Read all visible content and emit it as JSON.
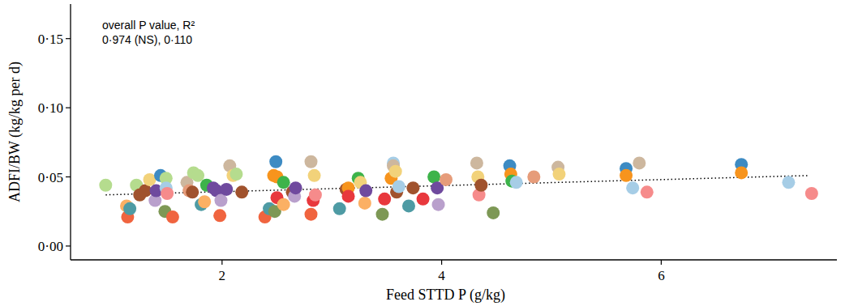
{
  "chart_data": {
    "type": "scatter",
    "x_label": "Feed STTD P (g/kg)",
    "y_label": "ADFI/BW (kg/kg per d)",
    "annotations": [
      "overall P value, R²",
      "0·974 (NS), 0·110"
    ],
    "xlim": [
      0.62,
      7.6
    ],
    "ylim": [
      -0.01,
      0.175
    ],
    "xticks": [
      2,
      4,
      6
    ],
    "yticks": [
      {
        "value": 0,
        "label": "0·00"
      },
      {
        "value": 0.05,
        "label": "0·05"
      },
      {
        "value": 0.1,
        "label": "0·10"
      },
      {
        "value": 0.15,
        "label": "0·15"
      }
    ],
    "grid": false,
    "series": [
      {
        "type": "scatter",
        "marker": "circle",
        "x": [
          0.94,
          1.14,
          1.13,
          1.16,
          1.22,
          1.25,
          1.3,
          1.34,
          1.39,
          1.4,
          1.44,
          1.49,
          1.49,
          1.5,
          1.48,
          1.55,
          1.68,
          1.7,
          1.73,
          1.74,
          1.78,
          1.81,
          1.84,
          1.86,
          1.92,
          1.95,
          1.98,
          1.99,
          2.04,
          2.07,
          2.1,
          2.13,
          2.18,
          2.39,
          2.43,
          2.47,
          2.48,
          2.49,
          2.5,
          2.5,
          2.56,
          2.56,
          2.64,
          2.66,
          2.67,
          2.81,
          2.81,
          2.83,
          2.84,
          2.85,
          3.07,
          3.13,
          3.15,
          3.15,
          3.24,
          3.26,
          3.3,
          3.31,
          3.46,
          3.48,
          3.54,
          3.56,
          3.56,
          3.58,
          3.59,
          3.61,
          3.7,
          3.74,
          3.83,
          3.93,
          3.96,
          3.97,
          4.04,
          4.32,
          4.33,
          4.34,
          4.36,
          4.47,
          4.62,
          4.63,
          4.64,
          4.68,
          4.84,
          5.06,
          5.07,
          5.68,
          5.68,
          5.74,
          5.8,
          5.87,
          6.73,
          6.73,
          7.16,
          7.37
        ],
        "values": [
          0.044,
          0.021,
          0.029,
          0.027,
          0.044,
          0.037,
          0.04,
          0.048,
          0.033,
          0.04,
          0.051,
          0.049,
          0.042,
          0.038,
          0.025,
          0.021,
          0.046,
          0.04,
          0.039,
          0.053,
          0.051,
          0.03,
          0.032,
          0.044,
          0.042,
          0.04,
          0.022,
          0.033,
          0.041,
          0.058,
          0.051,
          0.052,
          0.039,
          0.021,
          0.027,
          0.051,
          0.025,
          0.061,
          0.035,
          0.05,
          0.046,
          0.03,
          0.039,
          0.036,
          0.042,
          0.061,
          0.023,
          0.033,
          0.051,
          0.037,
          0.027,
          0.041,
          0.042,
          0.036,
          0.049,
          0.046,
          0.031,
          0.04,
          0.023,
          0.034,
          0.049,
          0.06,
          0.058,
          0.054,
          0.039,
          0.043,
          0.029,
          0.042,
          0.034,
          0.05,
          0.042,
          0.03,
          0.048,
          0.06,
          0.05,
          0.037,
          0.044,
          0.024,
          0.058,
          0.052,
          0.047,
          0.046,
          0.05,
          0.057,
          0.052,
          0.056,
          0.051,
          0.042,
          0.06,
          0.039,
          0.059,
          0.053,
          0.046,
          0.038
        ],
        "colors": [
          "#b5dc8e",
          "#f0643f",
          "#fbb064",
          "#4e9ba4",
          "#b5dc8e",
          "#a0522d",
          "#a0522d",
          "#f2d27a",
          "#b9a0cc",
          "#6f4a9e",
          "#3d8bc3",
          "#b5dc8e",
          "#a6cde6",
          "#f68b8b",
          "#7d9855",
          "#f0643f",
          "#cdb79e",
          "#e69c7a",
          "#a0522d",
          "#b5dc8e",
          "#b5dc8e",
          "#4e9ba4",
          "#fbb064",
          "#3db34a",
          "#6f4a9e",
          "#6f4a9e",
          "#f0643f",
          "#b9a0cc",
          "#6f4a9e",
          "#cdb79e",
          "#f2d27a",
          "#b5dc8e",
          "#a0522d",
          "#f0643f",
          "#4e9ba4",
          "#f7941d",
          "#7d9855",
          "#3d8bc3",
          "#e8383d",
          "#f7941d",
          "#3db34a",
          "#fbb064",
          "#a0522d",
          "#b9a0cc",
          "#6f4a9e",
          "#cdb79e",
          "#f0643f",
          "#e8383d",
          "#f2d27a",
          "#f68b8b",
          "#4e9ba4",
          "#a0522d",
          "#f7941d",
          "#e8383d",
          "#3db34a",
          "#f2d27a",
          "#fbb064",
          "#6f4a9e",
          "#7d9855",
          "#e8383d",
          "#f7941d",
          "#a6cde6",
          "#cdb79e",
          "#f2d27a",
          "#a0522d",
          "#a6cde6",
          "#4e9ba4",
          "#a0522d",
          "#e8383d",
          "#3db34a",
          "#6f4a9e",
          "#b9a0cc",
          "#e69c7a",
          "#cdb79e",
          "#f2d27a",
          "#f68b8b",
          "#a0522d",
          "#7d9855",
          "#3d8bc3",
          "#f7941d",
          "#3db34a",
          "#a6cde6",
          "#e69c7a",
          "#cdb79e",
          "#f2d27a",
          "#3d8bc3",
          "#f7941d",
          "#a6cde6",
          "#cdb79e",
          "#f68b8b",
          "#3d8bc3",
          "#f7941d",
          "#a6cde6",
          "#f68b8b"
        ]
      },
      {
        "type": "line",
        "line_style": "dotted",
        "color": "#000000",
        "x": [
          0.94,
          7.35
        ],
        "values": [
          0.037,
          0.051
        ]
      }
    ]
  }
}
